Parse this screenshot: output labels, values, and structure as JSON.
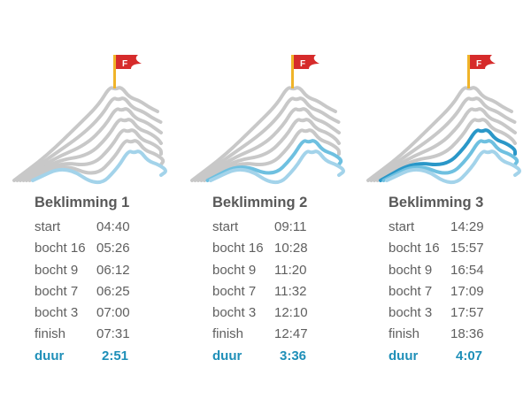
{
  "colors": {
    "inactive": "#c8c8c8",
    "light_blue": "#a3d3ea",
    "mid_blue": "#6ec0e0",
    "dark_blue": "#2a97c8",
    "flag_red": "#d62b2b",
    "flag_pole": "#f0b429",
    "label": "#5f5f5f",
    "title": "#595959",
    "total": "#1e8fb8"
  },
  "flag_letter": "F",
  "climbs": [
    {
      "title": "Beklimming 1",
      "rows": [
        {
          "label": "start",
          "time": "04:40"
        },
        {
          "label": "bocht 16",
          "time": "05:26"
        },
        {
          "label": "bocht 9",
          "time": "06:12"
        },
        {
          "label": "bocht 7",
          "time": "06:25"
        },
        {
          "label": "bocht 3",
          "time": "07:00"
        },
        {
          "label": "finish",
          "time": "07:31"
        }
      ],
      "total": {
        "label": "duur",
        "time": "2:51"
      },
      "highlighted_ridges": 1
    },
    {
      "title": "Beklimming 2",
      "rows": [
        {
          "label": "start",
          "time": "09:11"
        },
        {
          "label": "bocht 16",
          "time": "10:28"
        },
        {
          "label": "bocht 9",
          "time": "11:20"
        },
        {
          "label": "bocht 7",
          "time": "11:32"
        },
        {
          "label": "bocht 3",
          "time": "12:10"
        },
        {
          "label": "finish",
          "time": "12:47"
        }
      ],
      "total": {
        "label": "duur",
        "time": "3:36"
      },
      "highlighted_ridges": 2
    },
    {
      "title": "Beklimming 3",
      "rows": [
        {
          "label": "start",
          "time": "14:29"
        },
        {
          "label": "bocht 16",
          "time": "15:57"
        },
        {
          "label": "bocht 9",
          "time": "16:54"
        },
        {
          "label": "bocht 7",
          "time": "17:09"
        },
        {
          "label": "bocht 3",
          "time": "17:57"
        },
        {
          "label": "finish",
          "time": "18:36"
        }
      ],
      "total": {
        "label": "duur",
        "time": "4:07"
      },
      "highlighted_ridges": 3
    }
  ]
}
